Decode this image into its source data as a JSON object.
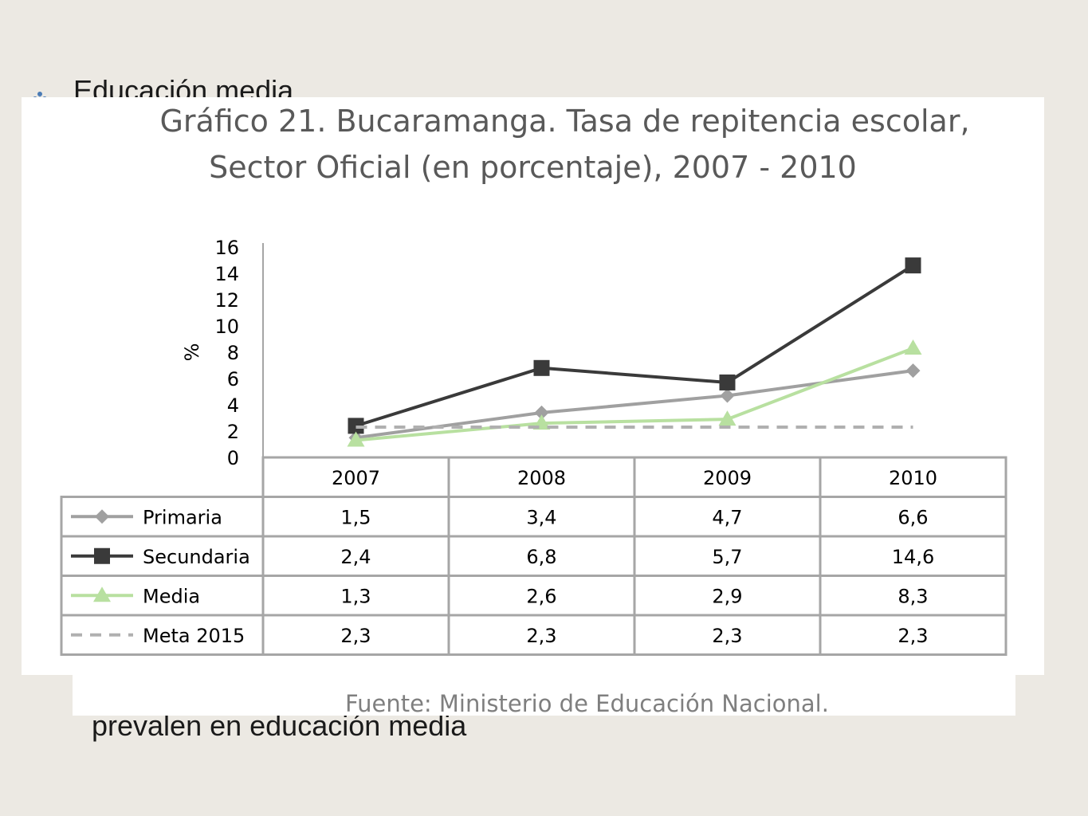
{
  "slide": {
    "heading": "Educación media",
    "body_line": "prevalen en educación media",
    "bullet_color": "#4a7bb5"
  },
  "chart_data": {
    "type": "line",
    "title": "Gráfico 21. Bucaramanga. Tasa de repitencia escolar,",
    "subtitle": "Sector Oficial (en porcentaje), 2007 - 2010",
    "ylabel": "%",
    "xlabel": "",
    "ylim": [
      0,
      16
    ],
    "yticks": [
      "0",
      "2",
      "4",
      "6",
      "8",
      "10",
      "12",
      "14",
      "16"
    ],
    "categories": [
      "2007",
      "2008",
      "2009",
      "2010"
    ],
    "series": [
      {
        "name": "Primaria",
        "values": [
          1.5,
          3.4,
          4.7,
          6.6
        ],
        "labels": [
          "1,5",
          "3,4",
          "4,7",
          "6,6"
        ],
        "color": "#a0a0a0",
        "marker": "diamond",
        "dash": false
      },
      {
        "name": "Secundaria",
        "values": [
          2.4,
          6.8,
          5.7,
          14.6
        ],
        "labels": [
          "2,4",
          "6,8",
          "5,7",
          "14,6"
        ],
        "color": "#3a3a3a",
        "marker": "square",
        "dash": false
      },
      {
        "name": "Media",
        "values": [
          1.3,
          2.6,
          2.9,
          8.3
        ],
        "labels": [
          "1,3",
          "2,6",
          "2,9",
          "8,3"
        ],
        "color": "#b8e0a0",
        "marker": "triangle",
        "dash": false
      },
      {
        "name": "Meta 2015",
        "values": [
          2.3,
          2.3,
          2.3,
          2.3
        ],
        "labels": [
          "2,3",
          "2,3",
          "2,3",
          "2,3"
        ],
        "color": "#b0b0b0",
        "marker": "none",
        "dash": true
      }
    ],
    "legend": "data-table",
    "grid": false,
    "source": "Fuente: Ministerio de Educación Nacional."
  }
}
